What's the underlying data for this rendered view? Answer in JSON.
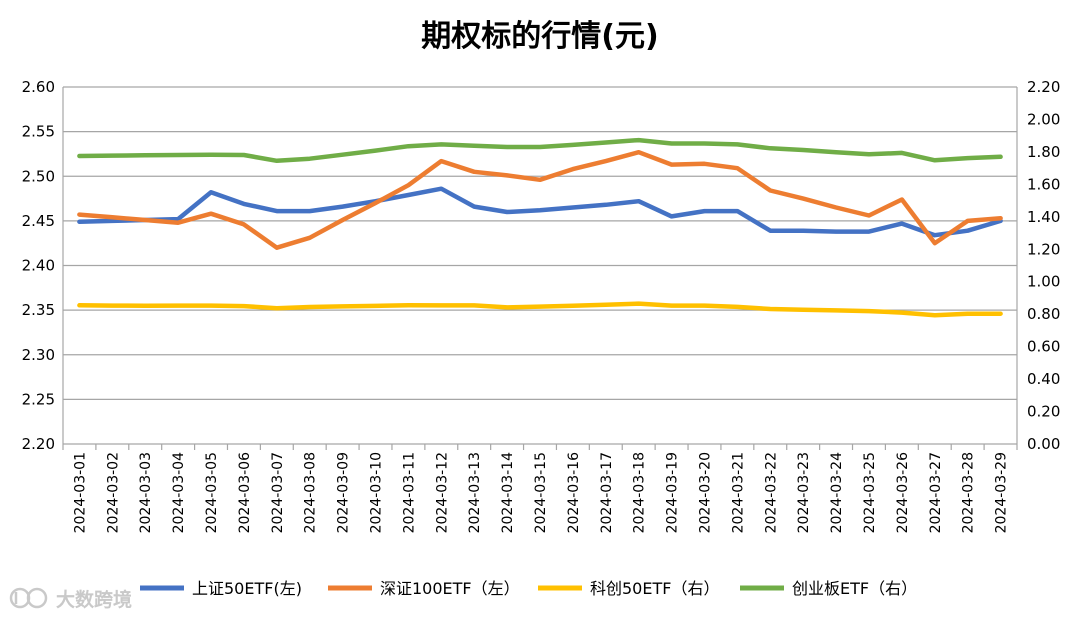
{
  "chart_data": {
    "type": "line",
    "title": "期权标的行情(元)",
    "categories": [
      "2024-03-01",
      "2024-03-02",
      "2024-03-03",
      "2024-03-04",
      "2024-03-05",
      "2024-03-06",
      "2024-03-07",
      "2024-03-08",
      "2024-03-09",
      "2024-03-10",
      "2024-03-11",
      "2024-03-12",
      "2024-03-13",
      "2024-03-14",
      "2024-03-15",
      "2024-03-16",
      "2024-03-17",
      "2024-03-18",
      "2024-03-19",
      "2024-03-20",
      "2024-03-21",
      "2024-03-22",
      "2024-03-23",
      "2024-03-24",
      "2024-03-25",
      "2024-03-26",
      "2024-03-27",
      "2024-03-28",
      "2024-03-29"
    ],
    "left_axis": {
      "min": 2.2,
      "max": 2.6,
      "step": 0.05,
      "ticks": [
        "2.20",
        "2.25",
        "2.30",
        "2.35",
        "2.40",
        "2.45",
        "2.50",
        "2.55",
        "2.60"
      ]
    },
    "right_axis": {
      "min": 0.0,
      "max": 2.2,
      "step": 0.2,
      "ticks": [
        "0.00",
        "0.20",
        "0.40",
        "0.60",
        "0.80",
        "1.00",
        "1.20",
        "1.40",
        "1.60",
        "1.80",
        "2.00",
        "2.20"
      ]
    },
    "grid": true,
    "legend_position": "bottom",
    "series": [
      {
        "name": "上证50ETF(左)",
        "axis": "left",
        "color": "#4472C4",
        "values": [
          2.449,
          2.45,
          2.451,
          2.452,
          2.482,
          2.469,
          2.461,
          2.461,
          2.466,
          2.472,
          2.479,
          2.486,
          2.466,
          2.46,
          2.462,
          2.465,
          2.468,
          2.472,
          2.455,
          2.461,
          2.461,
          2.439,
          2.439,
          2.438,
          2.438,
          2.447,
          2.434,
          2.439,
          2.45
        ]
      },
      {
        "name": "深证100ETF（左）",
        "axis": "left",
        "color": "#ED7D31",
        "values": [
          2.457,
          2.454,
          2.451,
          2.448,
          2.458,
          2.446,
          2.42,
          2.431,
          2.451,
          2.47,
          2.49,
          2.517,
          2.505,
          2.501,
          2.496,
          2.508,
          2.517,
          2.527,
          2.513,
          2.514,
          2.509,
          2.484,
          2.475,
          2.465,
          2.456,
          2.474,
          2.425,
          2.45,
          2.453
        ]
      },
      {
        "name": "科创50ETF（右）",
        "axis": "right",
        "color": "#FFC000",
        "values": [
          0.855,
          0.853,
          0.852,
          0.853,
          0.853,
          0.85,
          0.837,
          0.844,
          0.848,
          0.851,
          0.855,
          0.854,
          0.854,
          0.842,
          0.847,
          0.852,
          0.858,
          0.865,
          0.853,
          0.853,
          0.845,
          0.832,
          0.827,
          0.823,
          0.819,
          0.81,
          0.794,
          0.803,
          0.803
        ]
      },
      {
        "name": "创业板ETF（右）",
        "axis": "right",
        "color": "#70AD47",
        "values": [
          1.775,
          1.777,
          1.779,
          1.781,
          1.782,
          1.781,
          1.745,
          1.758,
          1.783,
          1.808,
          1.835,
          1.846,
          1.838,
          1.83,
          1.83,
          1.843,
          1.858,
          1.873,
          1.852,
          1.852,
          1.846,
          1.822,
          1.812,
          1.798,
          1.785,
          1.794,
          1.748,
          1.762,
          1.77
        ]
      }
    ]
  },
  "watermark": {
    "text": "大数跨境",
    "logo": "ID"
  }
}
